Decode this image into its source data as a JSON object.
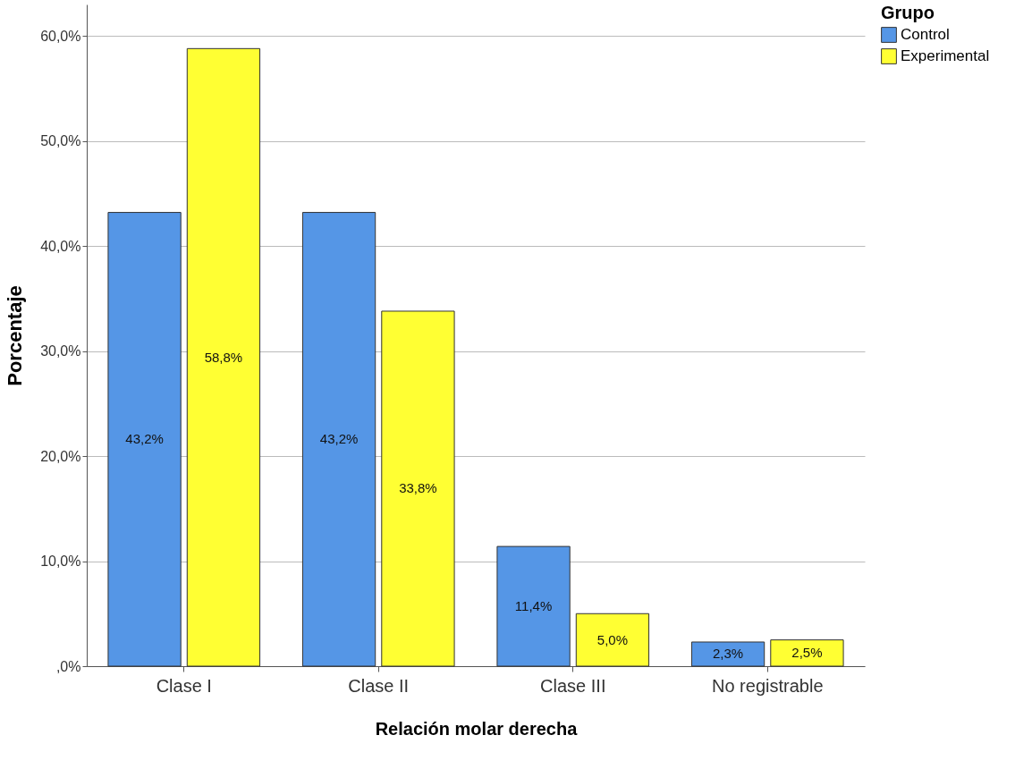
{
  "chart_data": {
    "type": "bar",
    "xlabel": "Relación molar derecha",
    "ylabel": "Porcentaje",
    "legend_title": "Grupo",
    "categories": [
      "Clase I",
      "Clase II",
      "Clase III",
      "No registrable"
    ],
    "series": [
      {
        "name": "Control",
        "color": "#5596e6",
        "values": [
          43.2,
          43.2,
          11.4,
          2.3
        ],
        "value_labels": [
          "43,2%",
          "43,2%",
          "11,4%",
          "2,3%"
        ]
      },
      {
        "name": "Experimental",
        "color": "#ffff33",
        "values": [
          58.8,
          33.8,
          5.0,
          2.5
        ],
        "value_labels": [
          "58,8%",
          "33,8%",
          "5,0%",
          "2,5%"
        ]
      }
    ],
    "ylim": [
      0,
      63
    ],
    "yticks": [
      {
        "value": 0,
        "label": ",0%"
      },
      {
        "value": 10,
        "label": "10,0%"
      },
      {
        "value": 20,
        "label": "20,0%"
      },
      {
        "value": 30,
        "label": "30,0%"
      },
      {
        "value": 40,
        "label": "40,0%"
      },
      {
        "value": 50,
        "label": "50,0%"
      },
      {
        "value": 60,
        "label": "60,0%"
      }
    ],
    "grid": "y",
    "legend": "top right"
  }
}
